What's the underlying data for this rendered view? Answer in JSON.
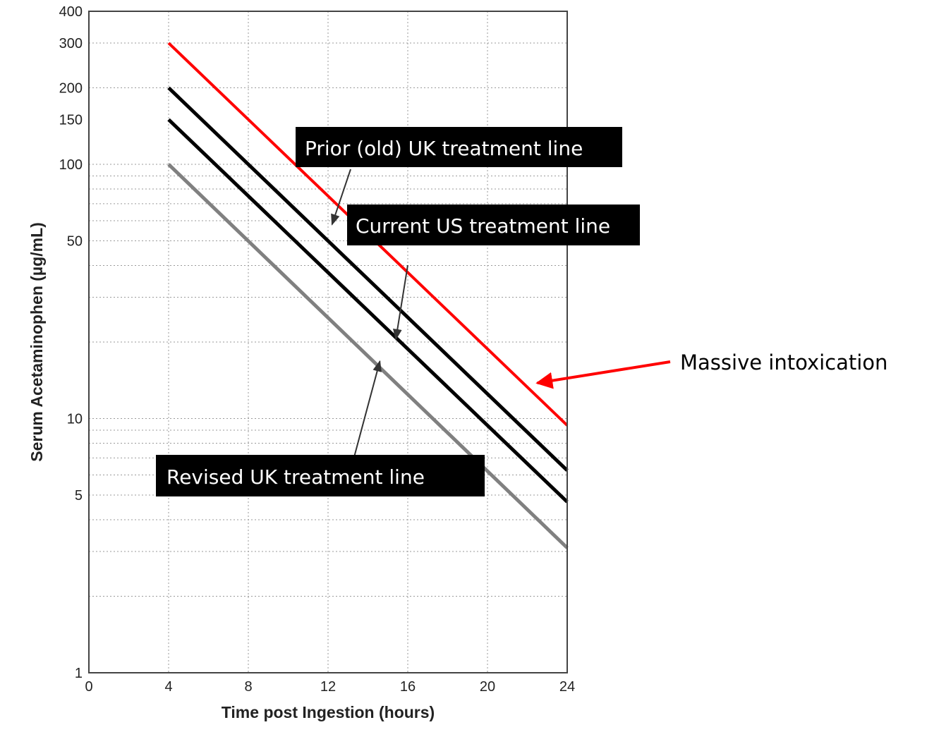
{
  "chart_data": {
    "type": "line",
    "xlabel": "Time post Ingestion (hours)",
    "ylabel": "Serum Acetaminophen (µg/mL)",
    "xlim": [
      0,
      24
    ],
    "ylim": [
      1,
      400
    ],
    "yscale": "log",
    "grid": true,
    "x_ticks": [
      "0",
      "4",
      "8",
      "12",
      "16",
      "20",
      "24"
    ],
    "x_tick_values": [
      0,
      4,
      8,
      12,
      16,
      20,
      24
    ],
    "y_ticks": [
      "1",
      "5",
      "10",
      "50",
      "100",
      "150",
      "200",
      "300",
      "400"
    ],
    "y_tick_values": [
      1,
      5,
      10,
      50,
      100,
      150,
      200,
      300,
      400
    ],
    "series": [
      {
        "key": "massive",
        "color": "#ff0000",
        "x": [
          4,
          24
        ],
        "y": [
          300,
          9.4
        ]
      },
      {
        "key": "prior_uk",
        "color": "#000000",
        "x": [
          4,
          24
        ],
        "y": [
          200,
          6.25
        ]
      },
      {
        "key": "current_us",
        "color": "#000000",
        "x": [
          4,
          24
        ],
        "y": [
          150,
          4.7
        ]
      },
      {
        "key": "revised_uk",
        "color": "#808080",
        "x": [
          4,
          24
        ],
        "y": [
          100,
          3.1
        ]
      }
    ],
    "annotations": [
      {
        "key": "prior_uk",
        "text": "Prior (old) UK treatment line",
        "style": "box",
        "arrow_target": {
          "x": 12.2,
          "y": 58
        }
      },
      {
        "key": "current_us",
        "text": "Current US treatment line",
        "style": "box",
        "arrow_target": {
          "x": 15.4,
          "y": 20.5
        }
      },
      {
        "key": "revised_uk",
        "text": "Revised UK treatment line",
        "style": "box",
        "arrow_target": {
          "x": 14.6,
          "y": 16.8
        }
      },
      {
        "key": "massive",
        "text": "Massive intoxication",
        "style": "text-red-arrow",
        "arrow_target": {
          "x": 22.5,
          "y": 13.8
        }
      }
    ]
  }
}
